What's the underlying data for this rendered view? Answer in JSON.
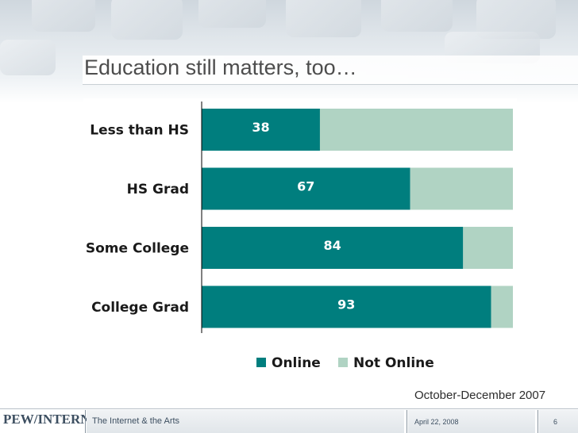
{
  "slide": {
    "title": "Education still matters, too…",
    "date_range": "October-December 2007"
  },
  "footer": {
    "logo": "PEW/INTERNET",
    "presentation_title": "The Internet & the Arts",
    "date": "April 22, 2008",
    "page_number": "6"
  },
  "colors": {
    "online": "#007e7e",
    "not_online": "#b0d3c3"
  },
  "chart_data": {
    "type": "bar",
    "orientation": "horizontal",
    "stacked": true,
    "percent_stacked": true,
    "categories": [
      "Less than HS",
      "HS Grad",
      "Some College",
      "College Grad"
    ],
    "series": [
      {
        "name": "Online",
        "values": [
          38,
          67,
          84,
          93
        ]
      },
      {
        "name": "Not Online",
        "values": [
          62,
          33,
          16,
          7
        ]
      }
    ],
    "data_labels": [
      "38",
      "67",
      "84",
      "93"
    ],
    "xlim": [
      0,
      100
    ],
    "legend_position": "bottom",
    "grid": false,
    "title": "",
    "xlabel": "",
    "ylabel": ""
  }
}
